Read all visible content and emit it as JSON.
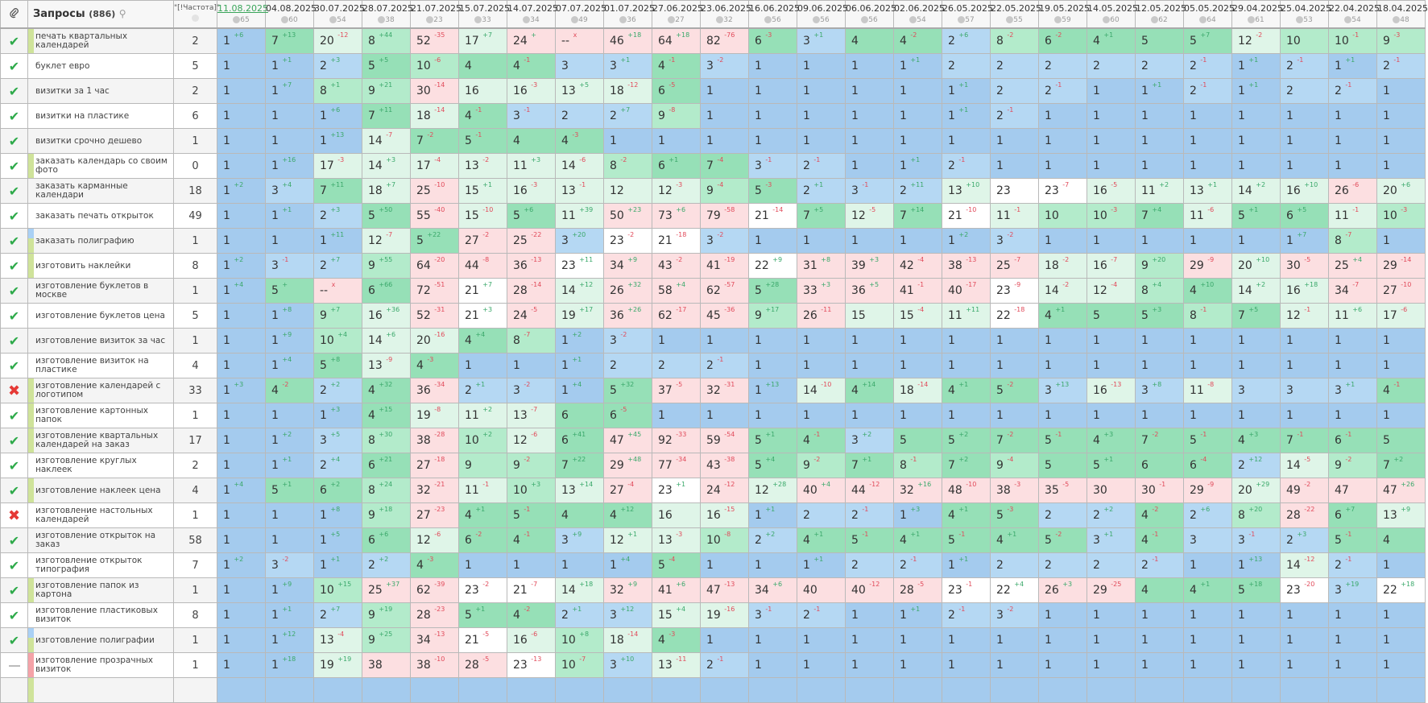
{
  "header": {
    "link_icon": "paperclip-icon",
    "queries_label": "Запросы",
    "queries_count": "(886)",
    "frequency_label": "\"[!Частота]\"",
    "dates": [
      {
        "date": "11.08.2025",
        "n": "65"
      },
      {
        "date": "04.08.2025",
        "n": "60"
      },
      {
        "date": "30.07.2025",
        "n": "54"
      },
      {
        "date": "28.07.2025",
        "n": "38"
      },
      {
        "date": "21.07.2025",
        "n": "23"
      },
      {
        "date": "15.07.2025",
        "n": "33"
      },
      {
        "date": "14.07.2025",
        "n": "34"
      },
      {
        "date": "07.07.2025",
        "n": "49"
      },
      {
        "date": "01.07.2025",
        "n": "36"
      },
      {
        "date": "27.06.2025",
        "n": "27"
      },
      {
        "date": "23.06.2025",
        "n": "32"
      },
      {
        "date": "16.06.2025",
        "n": "56"
      },
      {
        "date": "09.06.2025",
        "n": "56"
      },
      {
        "date": "06.06.2025",
        "n": "56"
      },
      {
        "date": "02.06.2025",
        "n": "54"
      },
      {
        "date": "26.05.2025",
        "n": "57"
      },
      {
        "date": "22.05.2025",
        "n": "55"
      },
      {
        "date": "19.05.2025",
        "n": "59"
      },
      {
        "date": "14.05.2025",
        "n": "60"
      },
      {
        "date": "12.05.2025",
        "n": "62"
      },
      {
        "date": "05.05.2025",
        "n": "64"
      },
      {
        "date": "29.04.2025",
        "n": "61"
      },
      {
        "date": "25.04.2025",
        "n": "53"
      },
      {
        "date": "22.04.2025",
        "n": "54"
      },
      {
        "date": "18.04.2025",
        "n": "48"
      }
    ]
  },
  "colors": {
    "blue1": "#a4cbee",
    "blue2": "#b5d8f3",
    "green": "#96e0b7",
    "green2": "#b3ebcb",
    "green3": "#dff5e8",
    "pink": "#fcdfe1",
    "up": "#3aa86a",
    "down": "#e14a5a",
    "stripe_green": "#cfe39a",
    "stripe_blue": "#a9d0f5",
    "stripe_pink": "#f5a3a8"
  },
  "rows": [
    {
      "status": "ok",
      "stripe": "green",
      "name": "печать квартальных календарей",
      "freq": "2",
      "cells": [
        "1 +6",
        "7 +13",
        "20 -12",
        "8 +44",
        "52 -35",
        "17 +7",
        "24 +",
        "-- x",
        "46 +18",
        "64 +18",
        "82 -76",
        "6 -3",
        "3 +1",
        "4",
        "4 -2",
        "2 +6",
        "8 -2",
        "6 -2",
        "4 +1",
        "5",
        "5 +7",
        "12 -2",
        "10",
        "10 -1",
        "9 -3"
      ]
    },
    {
      "status": "ok",
      "name": "буклет евро",
      "freq": "5",
      "cells": [
        "1",
        "1 +1",
        "2 +3",
        "5 +5",
        "10 -6",
        "4",
        "4 -1",
        "3",
        "3 +1",
        "4 -1",
        "3 -2",
        "1",
        "1",
        "1",
        "1 +1",
        "2",
        "2",
        "2",
        "2",
        "2",
        "2 -1",
        "1 +1",
        "2 -1",
        "1 +1",
        "2 -1"
      ]
    },
    {
      "status": "ok",
      "name": "визитки за 1 час",
      "freq": "2",
      "cells": [
        "1",
        "1 +7",
        "8 +1",
        "9 +21",
        "30 -14",
        "16",
        "16 -3",
        "13 +5",
        "18 -12",
        "6 -5",
        "1",
        "1",
        "1",
        "1",
        "1",
        "1 +1",
        "2",
        "2 -1",
        "1",
        "1 +1",
        "2 -1",
        "1 +1",
        "2",
        "2 -1",
        "1"
      ]
    },
    {
      "status": "ok",
      "name": "визитки на пластике",
      "freq": "6",
      "cells": [
        "1",
        "1",
        "1 +6",
        "7 +11",
        "18 -14",
        "4 -1",
        "3 -1",
        "2",
        "2 +7",
        "9 -8",
        "1",
        "1",
        "1",
        "1",
        "1",
        "1 +1",
        "2 -1",
        "1",
        "1",
        "1",
        "1",
        "1",
        "1",
        "1",
        "1"
      ]
    },
    {
      "status": "ok",
      "name": "визитки срочно дешево",
      "freq": "1",
      "cells": [
        "1",
        "1",
        "1 +13",
        "14 -7",
        "7 -2",
        "5 -1",
        "4",
        "4 -3",
        "1",
        "1",
        "1",
        "1",
        "1",
        "1",
        "1",
        "1",
        "1",
        "1",
        "1",
        "1",
        "1",
        "1",
        "1",
        "1",
        "1"
      ]
    },
    {
      "status": "ok",
      "stripe": "green",
      "name": "заказать календарь со своим фото",
      "freq": "0",
      "cells": [
        "1",
        "1 +16",
        "17 -3",
        "14 +3",
        "17 -4",
        "13 -2",
        "11 +3",
        "14 -6",
        "8 -2",
        "6 +1",
        "7 -4",
        "3 -1",
        "2 -1",
        "1",
        "1 +1",
        "2 -1",
        "1",
        "1",
        "1",
        "1",
        "1",
        "1",
        "1",
        "1",
        "1"
      ]
    },
    {
      "status": "ok",
      "name": "заказать карманные календари",
      "freq": "18",
      "cells": [
        "1 +2",
        "3 +4",
        "7 +11",
        "18 +7",
        "25 -10",
        "15 +1",
        "16 -3",
        "13 -1",
        "12",
        "12 -3",
        "9 -4",
        "5 -3",
        "2 +1",
        "3 -1",
        "2 +11",
        "13 +10",
        "23",
        "23 -7",
        "16 -5",
        "11 +2",
        "13 +1",
        "14 +2",
        "16 +10",
        "26 -6",
        "20 +6"
      ]
    },
    {
      "status": "ok",
      "name": "заказать печать открыток",
      "freq": "49",
      "cells": [
        "1",
        "1 +1",
        "2 +3",
        "5 +50",
        "55 -40",
        "15 -10",
        "5 +6",
        "11 +39",
        "50 +23",
        "73 +6",
        "79 -58",
        "21 -14",
        "7 +5",
        "12 -5",
        "7 +14",
        "21 -10",
        "11 -1",
        "10",
        "10 -3",
        "7 +4",
        "11 -6",
        "5 +1",
        "6 +5",
        "11 -1",
        "10 -3"
      ]
    },
    {
      "status": "ok",
      "stripe": "bluegreen",
      "name": "заказать полиграфию",
      "freq": "1",
      "cells": [
        "1",
        "1",
        "1 +11",
        "12 -7",
        "5 +22",
        "27 -2",
        "25 -22",
        "3 +20",
        "23 -2",
        "21 -18",
        "3 -2",
        "1",
        "1",
        "1",
        "1",
        "1 +2",
        "3 -2",
        "1",
        "1",
        "1",
        "1",
        "1",
        "1 +7",
        "8 -7",
        "1"
      ]
    },
    {
      "status": "ok",
      "stripe": "green",
      "name": "изготовить наклейки",
      "freq": "8",
      "cells": [
        "1 +2",
        "3 -1",
        "2 +7",
        "9 +55",
        "64 -20",
        "44 -8",
        "36 -13",
        "23 +11",
        "34 +9",
        "43 -2",
        "41 -19",
        "22 +9",
        "31 +8",
        "39 +3",
        "42 -4",
        "38 -13",
        "25 -7",
        "18 -2",
        "16 -7",
        "9 +20",
        "29 -9",
        "20 +10",
        "30 -5",
        "25 +4",
        "29 -14"
      ]
    },
    {
      "status": "ok",
      "name": "изготовление буклетов в москве",
      "freq": "1",
      "cells": [
        "1 +4",
        "5 +",
        "-- x",
        "6 +66",
        "72 -51",
        "21 +7",
        "28 -14",
        "14 +12",
        "26 +32",
        "58 +4",
        "62 -57",
        "5 +28",
        "33 +3",
        "36 +5",
        "41 -1",
        "40 -17",
        "23 -9",
        "14 -2",
        "12 -4",
        "8 +4",
        "4 +10",
        "14 +2",
        "16 +18",
        "34 -7",
        "27 -10"
      ]
    },
    {
      "status": "ok",
      "name": "изготовление буклетов цена",
      "freq": "5",
      "cells": [
        "1",
        "1 +8",
        "9 +7",
        "16 +36",
        "52 -31",
        "21 +3",
        "24 -5",
        "19 +17",
        "36 +26",
        "62 -17",
        "45 -36",
        "9 +17",
        "26 -11",
        "15",
        "15 -4",
        "11 +11",
        "22 -18",
        "4 +1",
        "5",
        "5 +3",
        "8 -1",
        "7 +5",
        "12 -1",
        "11 +6",
        "17 -6"
      ]
    },
    {
      "status": "ok",
      "name": "изготовление визиток за час",
      "freq": "1",
      "cells": [
        "1",
        "1 +9",
        "10 +4",
        "14 +6",
        "20 -16",
        "4 +4",
        "8 -7",
        "1 +2",
        "3 -2",
        "1",
        "1",
        "1",
        "1",
        "1",
        "1",
        "1",
        "1",
        "1",
        "1",
        "1",
        "1",
        "1",
        "1",
        "1",
        "1"
      ]
    },
    {
      "status": "ok",
      "name": "изготовление визиток на пластике",
      "freq": "4",
      "cells": [
        "1",
        "1 +4",
        "5 +8",
        "13 -9",
        "4 -3",
        "1",
        "1",
        "1 +1",
        "2",
        "2",
        "2 -1",
        "1",
        "1",
        "1",
        "1",
        "1",
        "1",
        "1",
        "1",
        "1",
        "1",
        "1",
        "1",
        "1",
        "1"
      ]
    },
    {
      "status": "fail",
      "stripe": "green",
      "name": "изготовление календарей с логотипом",
      "freq": "33",
      "cells": [
        "1 +3",
        "4 -2",
        "2 +2",
        "4 +32",
        "36 -34",
        "2 +1",
        "3 -2",
        "1 +4",
        "5 +32",
        "37 -5",
        "32 -31",
        "1 +13",
        "14 -10",
        "4 +14",
        "18 -14",
        "4 +1",
        "5 -2",
        "3 +13",
        "16 -13",
        "3 +8",
        "11 -8",
        "3",
        "3",
        "3 +1",
        "4 -1"
      ]
    },
    {
      "status": "ok",
      "stripe": "green",
      "name": "изготовление картонных папок",
      "freq": "1",
      "cells": [
        "1",
        "1",
        "1 +3",
        "4 +15",
        "19 -8",
        "11 +2",
        "13 -7",
        "6",
        "6 -5",
        "1",
        "1",
        "1",
        "1",
        "1",
        "1",
        "1",
        "1",
        "1",
        "1",
        "1",
        "1",
        "1",
        "1",
        "1",
        "1"
      ]
    },
    {
      "status": "ok",
      "stripe": "green",
      "name": "изготовление квартальных календарей на заказ",
      "freq": "17",
      "cells": [
        "1",
        "1 +2",
        "3 +5",
        "8 +30",
        "38 -28",
        "10 +2",
        "12 -6",
        "6 +41",
        "47 +45",
        "92 -33",
        "59 -54",
        "5 +1",
        "4 -1",
        "3 +2",
        "5",
        "5 +2",
        "7 -2",
        "5 -1",
        "4 +3",
        "7 -2",
        "5 -1",
        "4 +3",
        "7 -1",
        "6 -1",
        "5"
      ]
    },
    {
      "status": "ok",
      "name": "изготовление круглых наклеек",
      "freq": "2",
      "cells": [
        "1",
        "1 +1",
        "2 +4",
        "6 +21",
        "27 -18",
        "9",
        "9 -2",
        "7 +22",
        "29 +48",
        "77 -34",
        "43 -38",
        "5 +4",
        "9 -2",
        "7 +1",
        "8 -1",
        "7 +2",
        "9 -4",
        "5",
        "5 +1",
        "6",
        "6 -4",
        "2 +12",
        "14 -5",
        "9 -2",
        "7 +2"
      ]
    },
    {
      "status": "ok",
      "stripe": "green",
      "name": "изготовление наклеек цена",
      "freq": "4",
      "cells": [
        "1 +4",
        "5 +1",
        "6 +2",
        "8 +24",
        "32 -21",
        "11 -1",
        "10 +3",
        "13 +14",
        "27 -4",
        "23 +1",
        "24 -12",
        "12 +28",
        "40 +4",
        "44 -12",
        "32 +16",
        "48 -10",
        "38 -3",
        "35 -5",
        "30",
        "30 -1",
        "29 -9",
        "20 +29",
        "49 -2",
        "47",
        "47 +26"
      ]
    },
    {
      "status": "fail",
      "name": "изготовление настольных календарей",
      "freq": "1",
      "cells": [
        "1",
        "1",
        "1 +8",
        "9 +18",
        "27 -23",
        "4 +1",
        "5 -1",
        "4",
        "4 +12",
        "16",
        "16 -15",
        "1 +1",
        "2",
        "2 -1",
        "1 +3",
        "4 +1",
        "5 -3",
        "2",
        "2 +2",
        "4 -2",
        "2 +6",
        "8 +20",
        "28 -22",
        "6 +7",
        "13 +9"
      ]
    },
    {
      "status": "ok",
      "name": "изготовление открыток на заказ",
      "freq": "58",
      "cells": [
        "1",
        "1",
        "1 +5",
        "6 +6",
        "12 -6",
        "6 -2",
        "4 -1",
        "3 +9",
        "12 +1",
        "13 -3",
        "10 -8",
        "2 +2",
        "4 +1",
        "5 -1",
        "4 +1",
        "5 -1",
        "4 +1",
        "5 -2",
        "3 +1",
        "4 -1",
        "3",
        "3 -1",
        "2 +3",
        "5 -1",
        "4"
      ]
    },
    {
      "status": "ok",
      "name": "изготовление открыток типография",
      "freq": "7",
      "cells": [
        "1 +2",
        "3 -2",
        "1 +1",
        "2 +2",
        "4 -3",
        "1",
        "1",
        "1",
        "1 +4",
        "5 -4",
        "1",
        "1",
        "1 +1",
        "2",
        "2 -1",
        "1 +1",
        "2",
        "2",
        "2",
        "2 -1",
        "1",
        "1 +13",
        "14 -12",
        "2 -1",
        "1"
      ]
    },
    {
      "status": "ok",
      "stripe": "green",
      "name": "изготовление папок из картона",
      "freq": "1",
      "cells": [
        "1",
        "1 +9",
        "10 +15",
        "25 +37",
        "62 -39",
        "23 -2",
        "21 -7",
        "14 +18",
        "32 +9",
        "41 +6",
        "47 -13",
        "34 +6",
        "40",
        "40 -12",
        "28 -5",
        "23 -1",
        "22 +4",
        "26 +3",
        "29 -25",
        "4",
        "4 +1",
        "5 +18",
        "23 -20",
        "3 +19",
        "22 +18"
      ]
    },
    {
      "status": "ok",
      "name": "изготовление пластиковых визиток",
      "freq": "8",
      "cells": [
        "1",
        "1 +1",
        "2 +7",
        "9 +19",
        "28 -23",
        "5 +1",
        "4 -2",
        "2 +1",
        "3 +12",
        "15 +4",
        "19 -16",
        "3 -1",
        "2 -1",
        "1",
        "1 +1",
        "2 -1",
        "3 -2",
        "1",
        "1",
        "1",
        "1",
        "1",
        "1",
        "1",
        "1"
      ]
    },
    {
      "status": "ok",
      "stripe": "bluegreen",
      "name": "изготовление полиграфии",
      "freq": "1",
      "cells": [
        "1",
        "1 +12",
        "13 -4",
        "9 +25",
        "34 -13",
        "21 -5",
        "16 -6",
        "10 +8",
        "18 -14",
        "4 -3",
        "1",
        "1",
        "1",
        "1",
        "1",
        "1",
        "1",
        "1",
        "1",
        "1",
        "1",
        "1",
        "1",
        "1",
        "1"
      ]
    },
    {
      "status": "none",
      "stripe": "pink",
      "name": "изготовление прозрачных визиток",
      "freq": "1",
      "cells": [
        "1",
        "1 +18",
        "19 +19",
        "38",
        "38 -10",
        "28 -5",
        "23 -13",
        "10 -7",
        "3 +10",
        "13 -11",
        "2 -1",
        "1",
        "1",
        "1",
        "1",
        "1",
        "1",
        "1",
        "1",
        "1",
        "1",
        "1",
        "1",
        "1",
        "1"
      ]
    }
  ]
}
